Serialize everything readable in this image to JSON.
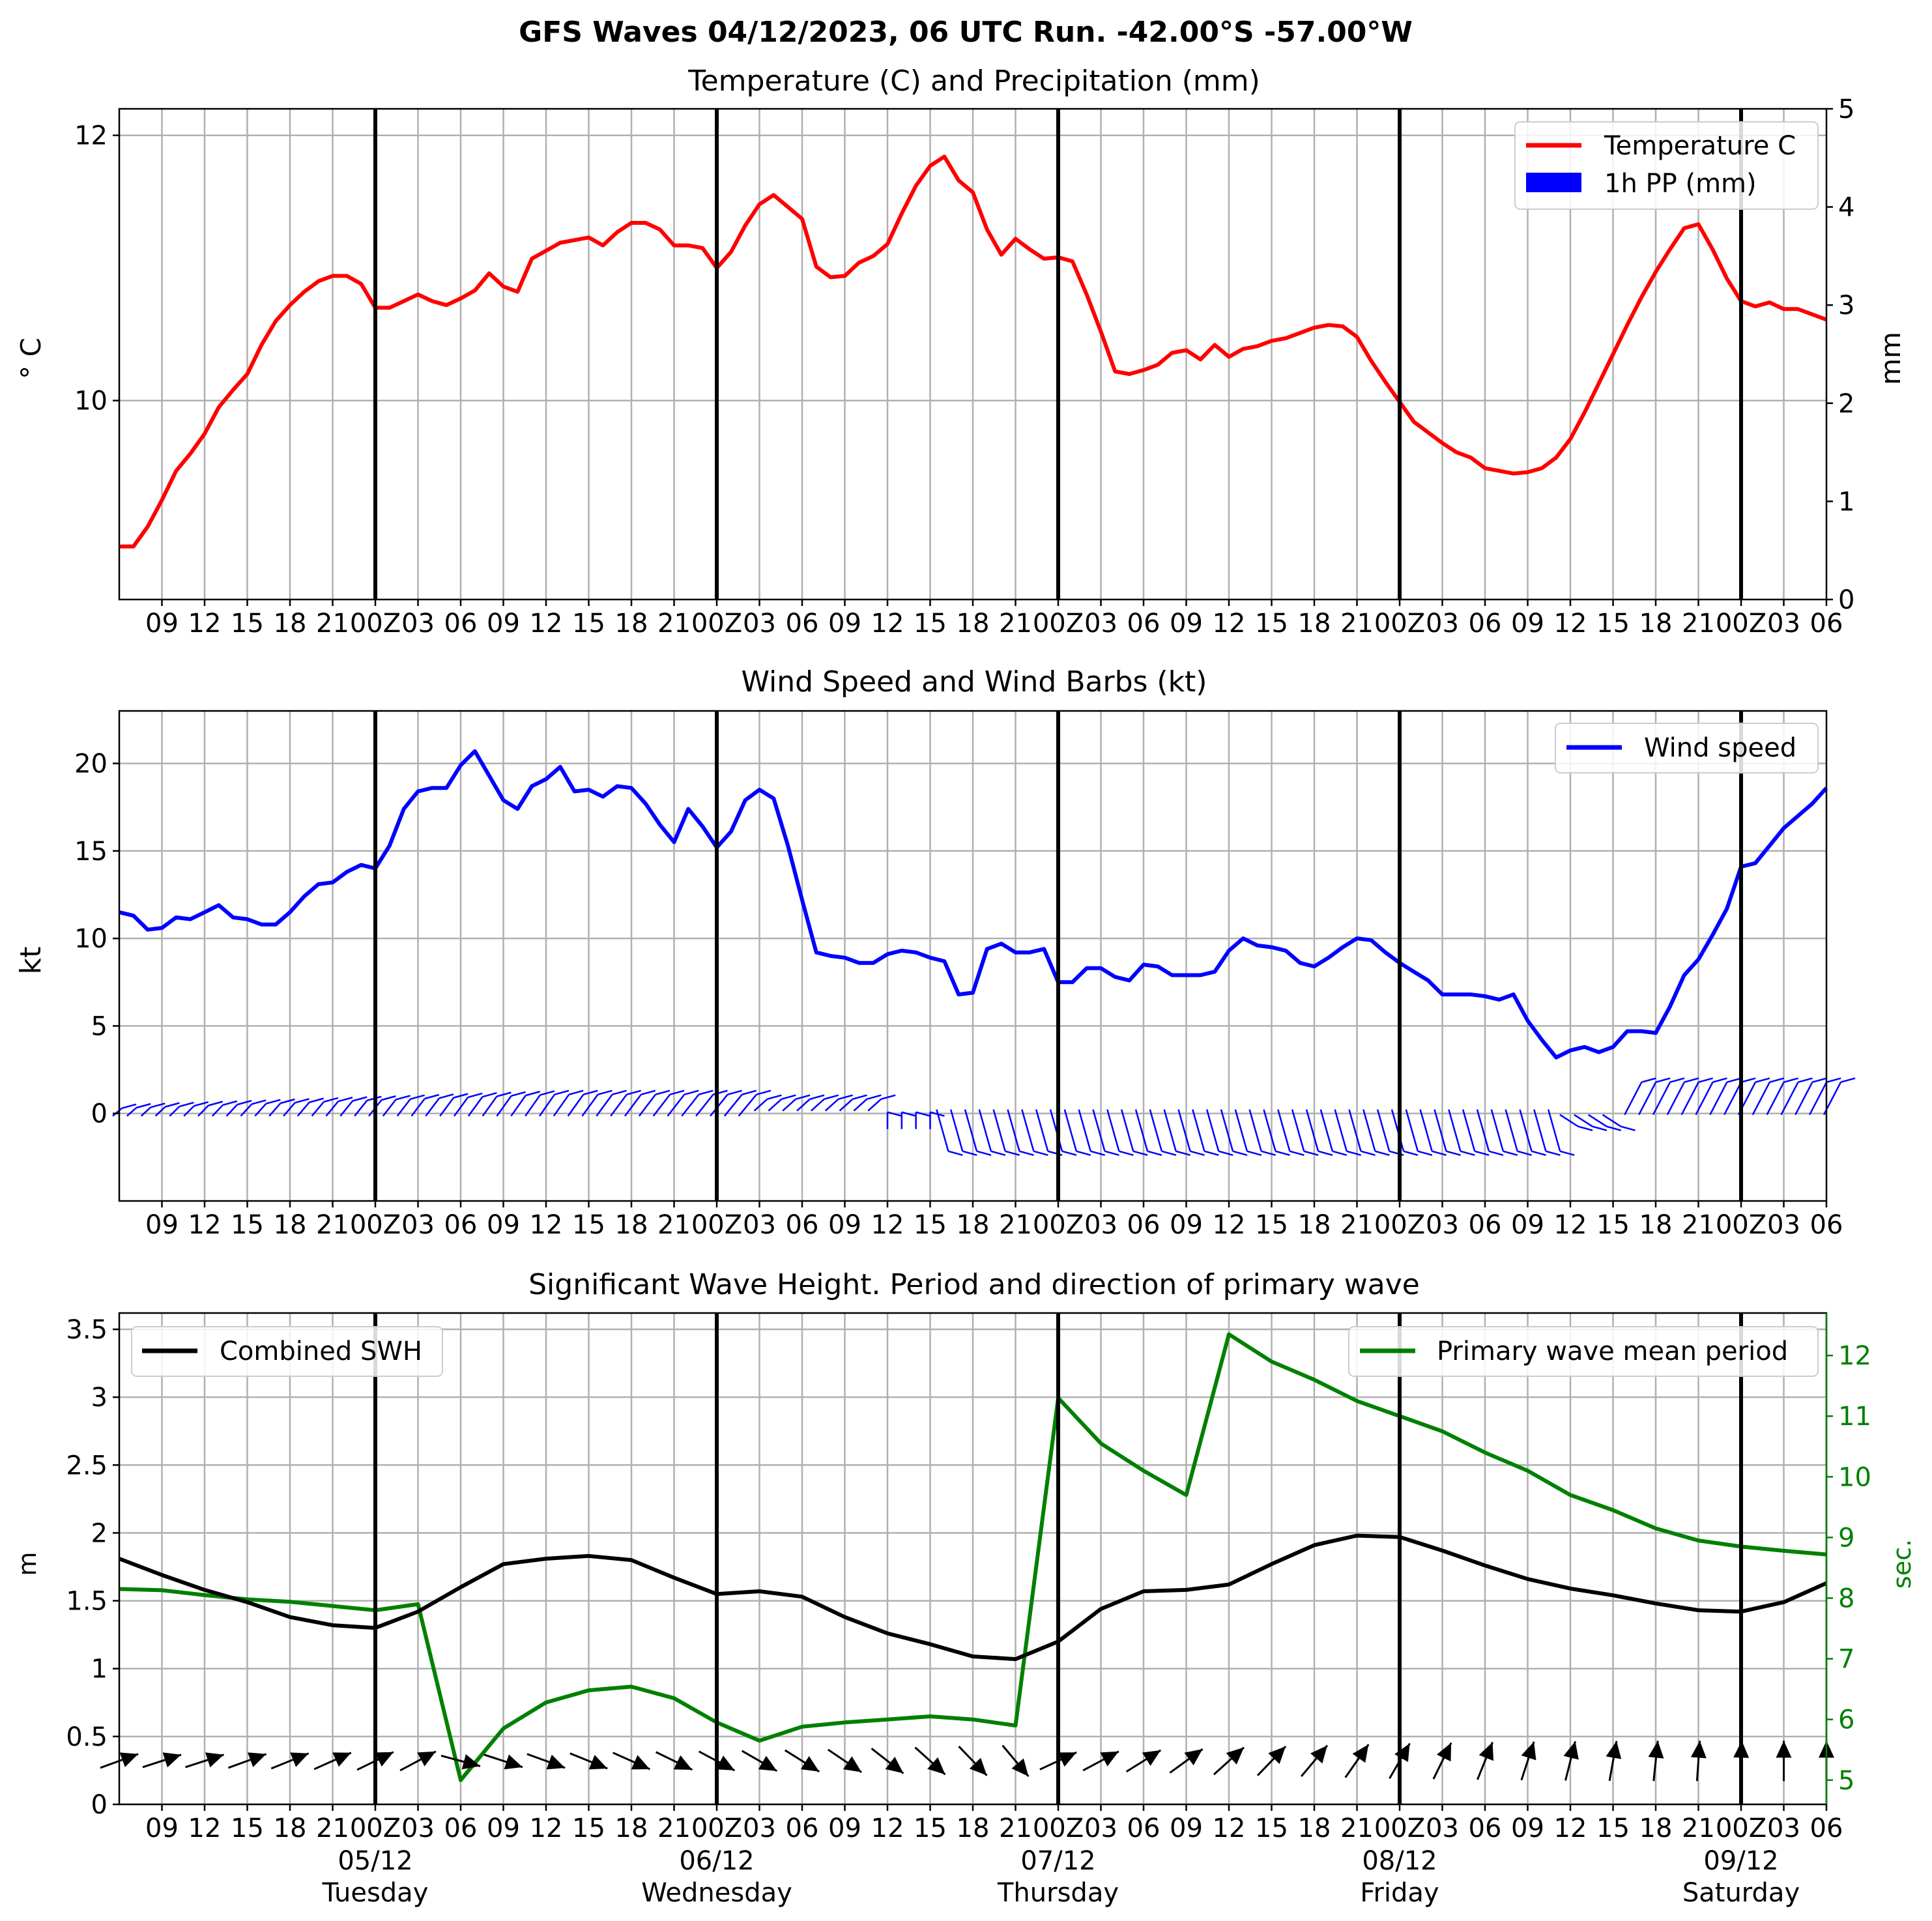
{
  "suptitle": "GFS Waves 04/12/2023, 06 UTC Run. -42.00°S -57.00°W",
  "colors": {
    "temperature": "#ff0000",
    "precip": "#0000ff",
    "wind": "#0000ff",
    "swh": "#000000",
    "period": "#008000",
    "grid": "#b0b0b0",
    "day_line": "#000000"
  },
  "time_axis": {
    "start": "04/12/2023 06 UTC",
    "end": "09/12/2023 06 UTC",
    "step_hours": 3,
    "hour_tick_labels": [
      "09",
      "12",
      "15",
      "18",
      "21",
      "00Z",
      "03",
      "06",
      "09",
      "12",
      "15",
      "18",
      "21",
      "00Z",
      "03",
      "06",
      "09",
      "12",
      "15",
      "18",
      "21",
      "00Z",
      "03",
      "06",
      "09",
      "12",
      "15",
      "18",
      "21",
      "00Z",
      "03",
      "06",
      "09",
      "12",
      "15",
      "18",
      "21",
      "00Z",
      "03",
      "06"
    ],
    "day_lines": [
      "05/12 00Z",
      "06/12 00Z",
      "07/12 00Z",
      "08/12 00Z",
      "09/12 00Z"
    ],
    "day_labels": [
      {
        "date": "05/12",
        "weekday": "Tuesday"
      },
      {
        "date": "06/12",
        "weekday": "Wednesday"
      },
      {
        "date": "07/12",
        "weekday": "Thursday"
      },
      {
        "date": "08/12",
        "weekday": "Friday"
      },
      {
        "date": "09/12",
        "weekday": "Saturday"
      }
    ]
  },
  "chart_data": [
    {
      "type": "line",
      "title": "Temperature (C) and Precipitation (mm)",
      "ylabel": "$^\\circ$C",
      "ylabel_display": "° C",
      "ylabel_right": "mm",
      "ylim": [
        8.5,
        12.2
      ],
      "yticks": [
        10,
        12
      ],
      "ylim_right": [
        0,
        5
      ],
      "yticks_right": [
        0,
        1,
        2,
        3,
        4,
        5
      ],
      "grid": true,
      "legend_position": "upper-right",
      "legend": [
        "Temperature C",
        "1h PP (mm)"
      ],
      "x_hours_from_start": [
        0,
        1,
        2,
        3,
        4,
        5,
        6,
        7,
        8,
        9,
        10,
        11,
        12,
        13,
        14,
        15,
        16,
        17,
        18,
        19,
        20,
        21,
        22,
        23,
        24,
        25,
        26,
        27,
        28,
        29,
        30,
        31,
        32,
        33,
        34,
        35,
        36,
        37,
        38,
        39,
        40,
        41,
        42,
        43,
        44,
        45,
        46,
        47,
        48,
        49,
        50,
        51,
        52,
        53,
        54,
        55,
        56,
        57,
        58,
        59,
        60,
        61,
        62,
        63,
        64,
        65,
        66,
        67,
        68,
        69,
        70,
        71,
        72,
        73,
        74,
        75,
        76,
        77,
        78,
        79,
        80,
        81,
        82,
        83,
        84,
        85,
        86,
        87,
        88,
        89,
        90,
        91,
        92,
        93,
        94,
        95,
        96,
        97,
        98,
        99,
        100,
        101,
        102,
        103,
        104,
        105,
        106,
        107,
        108,
        109,
        110,
        111,
        112,
        113,
        114,
        115,
        116,
        117,
        118,
        119,
        120
      ],
      "series": [
        {
          "name": "Temperature C",
          "values": [
            8.9,
            8.9,
            9.05,
            9.25,
            9.47,
            9.6,
            9.75,
            9.95,
            10.08,
            10.2,
            10.42,
            10.6,
            10.72,
            10.82,
            10.9,
            10.94,
            10.94,
            10.88,
            10.7,
            10.7,
            10.75,
            10.8,
            10.75,
            10.72,
            10.77,
            10.83,
            10.96,
            10.86,
            10.82,
            11.07,
            11.13,
            11.19,
            11.21,
            11.23,
            11.17,
            11.27,
            11.34,
            11.34,
            11.29,
            11.17,
            11.17,
            11.15,
            11.0,
            11.12,
            11.32,
            11.48,
            11.55,
            11.46,
            11.37,
            11.01,
            10.93,
            10.94,
            11.04,
            11.09,
            11.18,
            11.41,
            11.62,
            11.77,
            11.84,
            11.66,
            11.57,
            11.29,
            11.1,
            11.22,
            11.14,
            11.07,
            11.08,
            11.05,
            10.8,
            10.52,
            10.22,
            10.2,
            10.23,
            10.27,
            10.36,
            10.38,
            10.31,
            10.42,
            10.33,
            10.39,
            10.41,
            10.45,
            10.47,
            10.51,
            10.55,
            10.57,
            10.56,
            10.48,
            10.3,
            10.14,
            9.99,
            9.84,
            9.76,
            9.68,
            9.61,
            9.57,
            9.49,
            9.47,
            9.45,
            9.46,
            9.49,
            9.57,
            9.71,
            9.91,
            10.13,
            10.35,
            10.57,
            10.78,
            10.97,
            11.14,
            11.3,
            11.33,
            11.14,
            10.92,
            10.75,
            10.71,
            10.74,
            10.69,
            10.69,
            10.65,
            10.61
          ]
        },
        {
          "name": "1h PP (mm)",
          "values": []
        }
      ]
    },
    {
      "type": "line",
      "title": "Wind Speed and Wind Barbs (kt)",
      "ylabel": "kt",
      "ylim": [
        -5,
        23
      ],
      "yticks": [
        0,
        5,
        10,
        15,
        20
      ],
      "grid": true,
      "legend_position": "upper-right",
      "legend": [
        "Wind speed"
      ],
      "x_hours_from_start": [
        0,
        1,
        2,
        3,
        4,
        5,
        6,
        7,
        8,
        9,
        10,
        11,
        12,
        13,
        14,
        15,
        16,
        17,
        18,
        19,
        20,
        21,
        22,
        23,
        24,
        25,
        26,
        27,
        28,
        29,
        30,
        31,
        32,
        33,
        34,
        35,
        36,
        37,
        38,
        39,
        40,
        41,
        42,
        43,
        44,
        45,
        46,
        47,
        48,
        49,
        50,
        51,
        52,
        53,
        54,
        55,
        56,
        57,
        58,
        59,
        60,
        61,
        62,
        63,
        64,
        65,
        66,
        67,
        68,
        69,
        70,
        71,
        72,
        73,
        74,
        75,
        76,
        77,
        78,
        79,
        80,
        81,
        82,
        83,
        84,
        85,
        86,
        87,
        88,
        89,
        90,
        91,
        92,
        93,
        94,
        95,
        96,
        97,
        98,
        99,
        100,
        101,
        102,
        103,
        104,
        105,
        106,
        107,
        108,
        109,
        110,
        111,
        112,
        113,
        114,
        115,
        116,
        117,
        118,
        119,
        120
      ],
      "series": [
        {
          "name": "Wind speed",
          "values": [
            11.5,
            11.3,
            10.5,
            10.6,
            11.2,
            11.1,
            11.5,
            11.9,
            11.2,
            11.1,
            10.8,
            10.8,
            11.5,
            12.4,
            13.1,
            13.2,
            13.8,
            14.2,
            14.0,
            15.3,
            17.4,
            18.4,
            18.6,
            18.6,
            19.9,
            20.7,
            19.3,
            17.9,
            17.4,
            18.7,
            19.1,
            19.8,
            18.4,
            18.5,
            18.1,
            18.7,
            18.6,
            17.7,
            16.5,
            15.5,
            17.4,
            16.4,
            15.2,
            16.1,
            17.9,
            18.5,
            18.0,
            15.3,
            12.2,
            9.2,
            9.0,
            8.9,
            8.6,
            8.6,
            9.1,
            9.3,
            9.2,
            8.9,
            8.7,
            6.8,
            6.9,
            9.4,
            9.7,
            9.2,
            9.2,
            9.4,
            7.5,
            7.5,
            8.3,
            8.3,
            7.8,
            7.6,
            8.5,
            8.4,
            7.9,
            7.9,
            7.9,
            8.1,
            9.3,
            10.0,
            9.6,
            9.5,
            9.3,
            8.6,
            8.4,
            8.9,
            9.5,
            10.0,
            9.9,
            9.2,
            8.6,
            8.1,
            7.6,
            6.8,
            6.8,
            6.8,
            6.7,
            6.5,
            6.8,
            5.3,
            4.2,
            3.2,
            3.6,
            3.8,
            3.5,
            3.8,
            4.7,
            4.7,
            4.6,
            6.1,
            7.9,
            8.8,
            10.2,
            11.7,
            14.1,
            14.3,
            15.3,
            16.3,
            17.0,
            17.7,
            18.6
          ]
        }
      ],
      "barbs_shown": true
    },
    {
      "type": "line",
      "title": "Significant Wave Height. Period and direction of primary wave",
      "ylabel": "m",
      "ylabel_right": "sec.",
      "ylim": [
        0,
        3.62
      ],
      "yticks": [
        0.0,
        0.5,
        1.0,
        1.5,
        2.0,
        2.5,
        3.0,
        3.5
      ],
      "ylim_right": [
        4.6,
        12.7
      ],
      "yticks_right": [
        5,
        6,
        7,
        8,
        9,
        10,
        11,
        12
      ],
      "grid": true,
      "legend": [
        {
          "name": "Combined SWH",
          "position": "upper-left"
        },
        {
          "name": "Primary wave mean period",
          "position": "upper-right"
        }
      ],
      "x_hours_from_start": [
        0,
        3,
        6,
        9,
        12,
        15,
        18,
        21,
        24,
        27,
        30,
        33,
        36,
        39,
        42,
        45,
        48,
        51,
        54,
        57,
        60,
        63,
        66,
        69,
        72,
        75,
        78,
        81,
        84,
        87,
        90,
        93,
        96,
        99,
        102,
        105,
        108,
        111,
        114,
        117,
        120
      ],
      "series": [
        {
          "name": "Combined SWH",
          "values": [
            1.81,
            1.69,
            1.58,
            1.49,
            1.38,
            1.32,
            1.3,
            1.42,
            1.6,
            1.77,
            1.81,
            1.83,
            1.8,
            1.67,
            1.55,
            1.57,
            1.53,
            1.38,
            1.26,
            1.18,
            1.09,
            1.07,
            1.2,
            1.44,
            1.57,
            1.58,
            1.62,
            1.77,
            1.91,
            1.98,
            1.97,
            1.87,
            1.76,
            1.66,
            1.59,
            1.54,
            1.48,
            1.43,
            1.42,
            1.49,
            1.63
          ]
        },
        {
          "name": "Primary wave mean period",
          "values": [
            8.15,
            8.13,
            8.05,
            7.98,
            7.94,
            7.87,
            7.8,
            7.9,
            5.0,
            5.85,
            6.28,
            6.48,
            6.54,
            6.35,
            5.95,
            5.65,
            5.88,
            5.95,
            6.0,
            6.05,
            6.0,
            5.9,
            11.3,
            10.55,
            10.1,
            9.7,
            12.35,
            11.9,
            11.6,
            11.25,
            11.0,
            10.75,
            10.4,
            10.1,
            9.7,
            9.45,
            9.15,
            8.95,
            8.85,
            8.78,
            8.72
          ]
        }
      ],
      "wave_direction_arrows_shown": true,
      "wave_direction_angle_deg": [
        20,
        18,
        18,
        20,
        22,
        24,
        26,
        28,
        -15,
        -18,
        -20,
        -22,
        -24,
        -26,
        -28,
        -30,
        -32,
        -34,
        -38,
        -42,
        -46,
        -50,
        25,
        28,
        32,
        36,
        42,
        46,
        50,
        55,
        60,
        64,
        68,
        72,
        76,
        80,
        84,
        86,
        88,
        90,
        90
      ]
    }
  ]
}
